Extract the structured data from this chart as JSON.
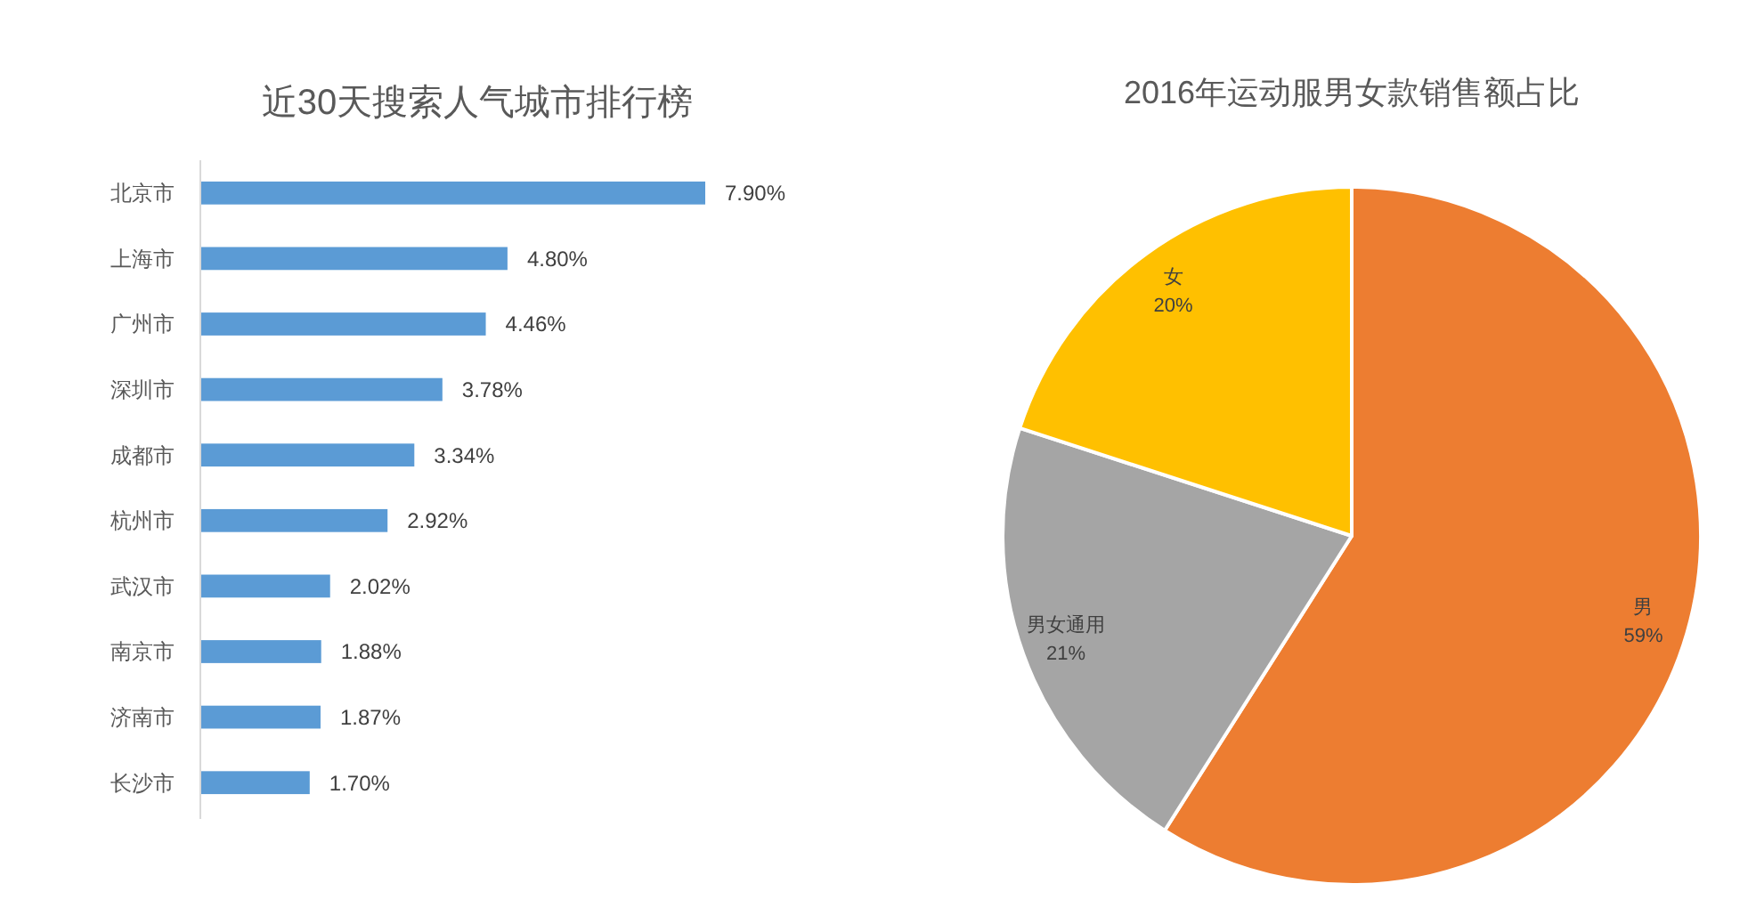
{
  "chart_data": [
    {
      "type": "bar",
      "orientation": "horizontal",
      "title": "近30天搜索人气城市排行榜",
      "categories": [
        "北京市",
        "上海市",
        "广州市",
        "深圳市",
        "成都市",
        "杭州市",
        "武汉市",
        "南京市",
        "济南市",
        "长沙市"
      ],
      "values": [
        7.9,
        4.8,
        4.46,
        3.78,
        3.34,
        2.92,
        2.02,
        1.88,
        1.87,
        1.7
      ],
      "value_labels": [
        "7.90%",
        "4.80%",
        "4.46%",
        "3.78%",
        "3.34%",
        "2.92%",
        "2.02%",
        "1.88%",
        "1.87%",
        "1.70%"
      ],
      "color": "#5b9bd5"
    },
    {
      "type": "pie",
      "title": "2016年运动服男女款销售额占比",
      "categories": [
        "男",
        "男女通用",
        "女"
      ],
      "values": [
        59,
        21,
        20
      ],
      "value_labels": [
        "59%",
        "21%",
        "20%"
      ],
      "colors": [
        "#ed7d31",
        "#a5a5a5",
        "#ffc000"
      ]
    }
  ]
}
